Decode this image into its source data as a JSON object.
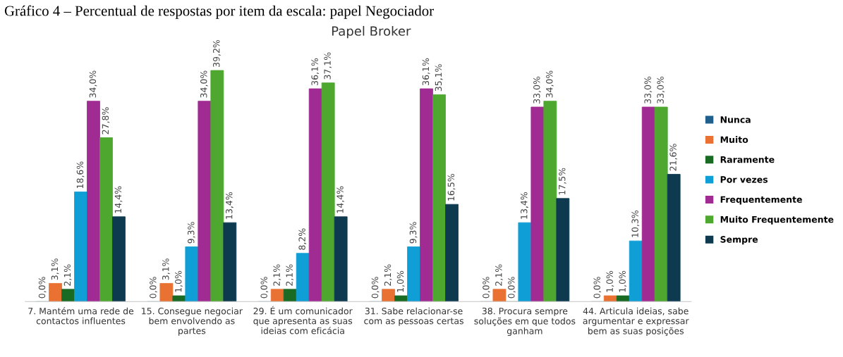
{
  "chart_data": {
    "type": "bar",
    "title": "Papel Broker",
    "annotations": [
      "Gráfico 4 – Percentual de respostas por item da escala: papel Negociador"
    ],
    "categories": [
      "7. Mantém uma rede de\ncontactos influentes",
      "15. Consegue negociar\nbem envolvendo as\npartes",
      "29. É um comunicador\nque apresenta as suas\nideias com eficácia",
      "31. Sabe relacionar-se\ncom as pessoas certas",
      "38. Procura sempre\nsoluções em que todos\nganham",
      "44. Articula ideias, sabe\nargumentar e expressar\nbem as suas posições"
    ],
    "series": [
      {
        "name": "Nunca",
        "color": "#1f5f8b",
        "values": [
          0.0,
          0.0,
          0.0,
          0.0,
          0.0,
          0.0
        ],
        "value_labels": [
          "0,0%",
          "0,0%",
          "0,0%",
          "0,0%",
          "0,0%",
          "0,0%"
        ]
      },
      {
        "name": "Muito",
        "color": "#e97132",
        "values": [
          3.1,
          3.1,
          2.1,
          2.1,
          2.1,
          1.0
        ],
        "value_labels": [
          "3,1%",
          "3,1%",
          "2,1%",
          "2,1%",
          "2,1%",
          "1,0%"
        ]
      },
      {
        "name": "Raramente",
        "color": "#196b24",
        "values": [
          2.1,
          1.0,
          2.1,
          1.0,
          0.0,
          1.0
        ],
        "value_labels": [
          "2,1%",
          "1,0%",
          "2,1%",
          "1,0%",
          "0,0%",
          "1,0%"
        ]
      },
      {
        "name": "Por vezes",
        "color": "#0f9ed5",
        "values": [
          18.6,
          9.3,
          8.2,
          9.3,
          13.4,
          10.3
        ],
        "value_labels": [
          "18,6%",
          "9,3%",
          "8,2%",
          "9,3%",
          "13,4%",
          "10,3%"
        ]
      },
      {
        "name": "Frequentemente",
        "color": "#a02b93",
        "values": [
          34.0,
          34.0,
          36.1,
          36.1,
          33.0,
          33.0
        ],
        "value_labels": [
          "34,0%",
          "34,0%",
          "36,1%",
          "36,1%",
          "33,0%",
          "33,0%"
        ]
      },
      {
        "name": "Muito Frequentemente",
        "color": "#4ea72e",
        "values": [
          27.8,
          39.2,
          37.1,
          35.1,
          34.0,
          33.0
        ],
        "value_labels": [
          "27,8%",
          "39,2%",
          "37,1%",
          "35,1%",
          "34,0%",
          "33,0%"
        ]
      },
      {
        "name": "Sempre",
        "color": "#0e3a50",
        "values": [
          14.4,
          13.4,
          14.4,
          16.5,
          17.5,
          21.6
        ],
        "value_labels": [
          "14,4%",
          "13,4%",
          "14,4%",
          "16,5%",
          "17,5%",
          "21,6%"
        ]
      }
    ],
    "tick_labels": "x",
    "legend": "right",
    "grid": false
  }
}
